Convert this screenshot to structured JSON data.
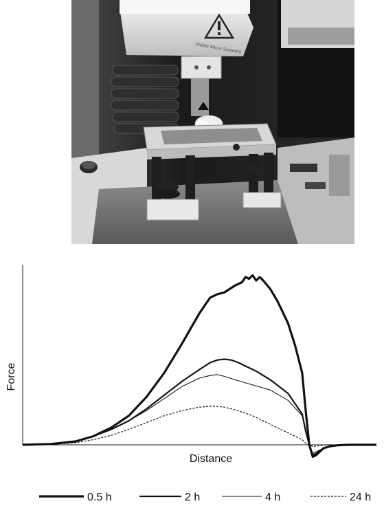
{
  "photo": {
    "instrument_brand_text": "Stable Micro Systems",
    "warning_icon": "warning-triangle-icon"
  },
  "chart_data": {
    "type": "line",
    "title": "",
    "xlabel": "Distance",
    "ylabel": "Force",
    "grid": false,
    "ticks": false,
    "xlim": [
      0,
      100
    ],
    "ylim": [
      -8,
      100
    ],
    "legend": "bottom",
    "series": [
      {
        "name": "0.5 h",
        "style": "thick-solid",
        "x": [
          0,
          8,
          15,
          20,
          25,
          30,
          35,
          40,
          45,
          50,
          53,
          55,
          57,
          60,
          62,
          63,
          64,
          65,
          66,
          67,
          68,
          70,
          72,
          75,
          77,
          79,
          80,
          81,
          82,
          83,
          84,
          85,
          87,
          89,
          92,
          95,
          100
        ],
        "y": [
          0,
          0.5,
          2,
          5,
          10,
          17,
          28,
          42,
          59,
          77,
          86,
          88,
          89,
          93,
          95,
          98,
          97,
          99,
          96,
          98,
          96,
          91,
          84,
          71,
          58,
          42,
          20,
          0,
          -7,
          -6,
          -4,
          -2,
          -0.8,
          -0.3,
          0,
          0,
          0
        ]
      },
      {
        "name": "2 h",
        "style": "medium-solid",
        "x": [
          0,
          8,
          15,
          20,
          25,
          30,
          35,
          40,
          45,
          50,
          53,
          55,
          57,
          59,
          61,
          63,
          66,
          70,
          75,
          79,
          80,
          81,
          82,
          83,
          84,
          85,
          87,
          89,
          92,
          95,
          100
        ],
        "y": [
          0,
          0.5,
          2,
          5,
          9,
          14,
          21,
          29,
          37,
          44,
          48,
          49.5,
          50,
          49.5,
          48,
          46,
          43,
          38,
          30,
          18,
          8,
          0,
          -6,
          -5,
          -3.5,
          -2,
          -0.8,
          -0.3,
          0,
          0,
          0
        ]
      },
      {
        "name": "4 h",
        "style": "thin-solid",
        "x": [
          0,
          8,
          15,
          20,
          25,
          30,
          35,
          40,
          45,
          50,
          53,
          55,
          57,
          60,
          65,
          70,
          75,
          79,
          80,
          81,
          82,
          83,
          84,
          86,
          89,
          92,
          100
        ],
        "y": [
          0,
          0.5,
          2,
          5,
          9,
          14,
          20,
          27,
          34,
          39,
          40.5,
          41,
          40,
          38,
          35,
          32,
          26,
          17,
          8,
          0,
          -5,
          -4,
          -3,
          -1.5,
          -0.5,
          0,
          0
        ]
      },
      {
        "name": "24 h",
        "style": "dotted",
        "x": [
          0,
          8,
          15,
          20,
          25,
          30,
          35,
          40,
          45,
          50,
          53,
          55,
          57,
          60,
          65,
          70,
          74,
          77,
          79,
          80,
          81,
          82,
          84,
          86,
          90,
          100
        ],
        "y": [
          0,
          0.3,
          1.2,
          3,
          5.5,
          9,
          13,
          17,
          20,
          22,
          22.5,
          22.5,
          22,
          20.5,
          17,
          12,
          8,
          5,
          3,
          1,
          0,
          -1,
          -0.5,
          0,
          0,
          0
        ]
      }
    ]
  }
}
